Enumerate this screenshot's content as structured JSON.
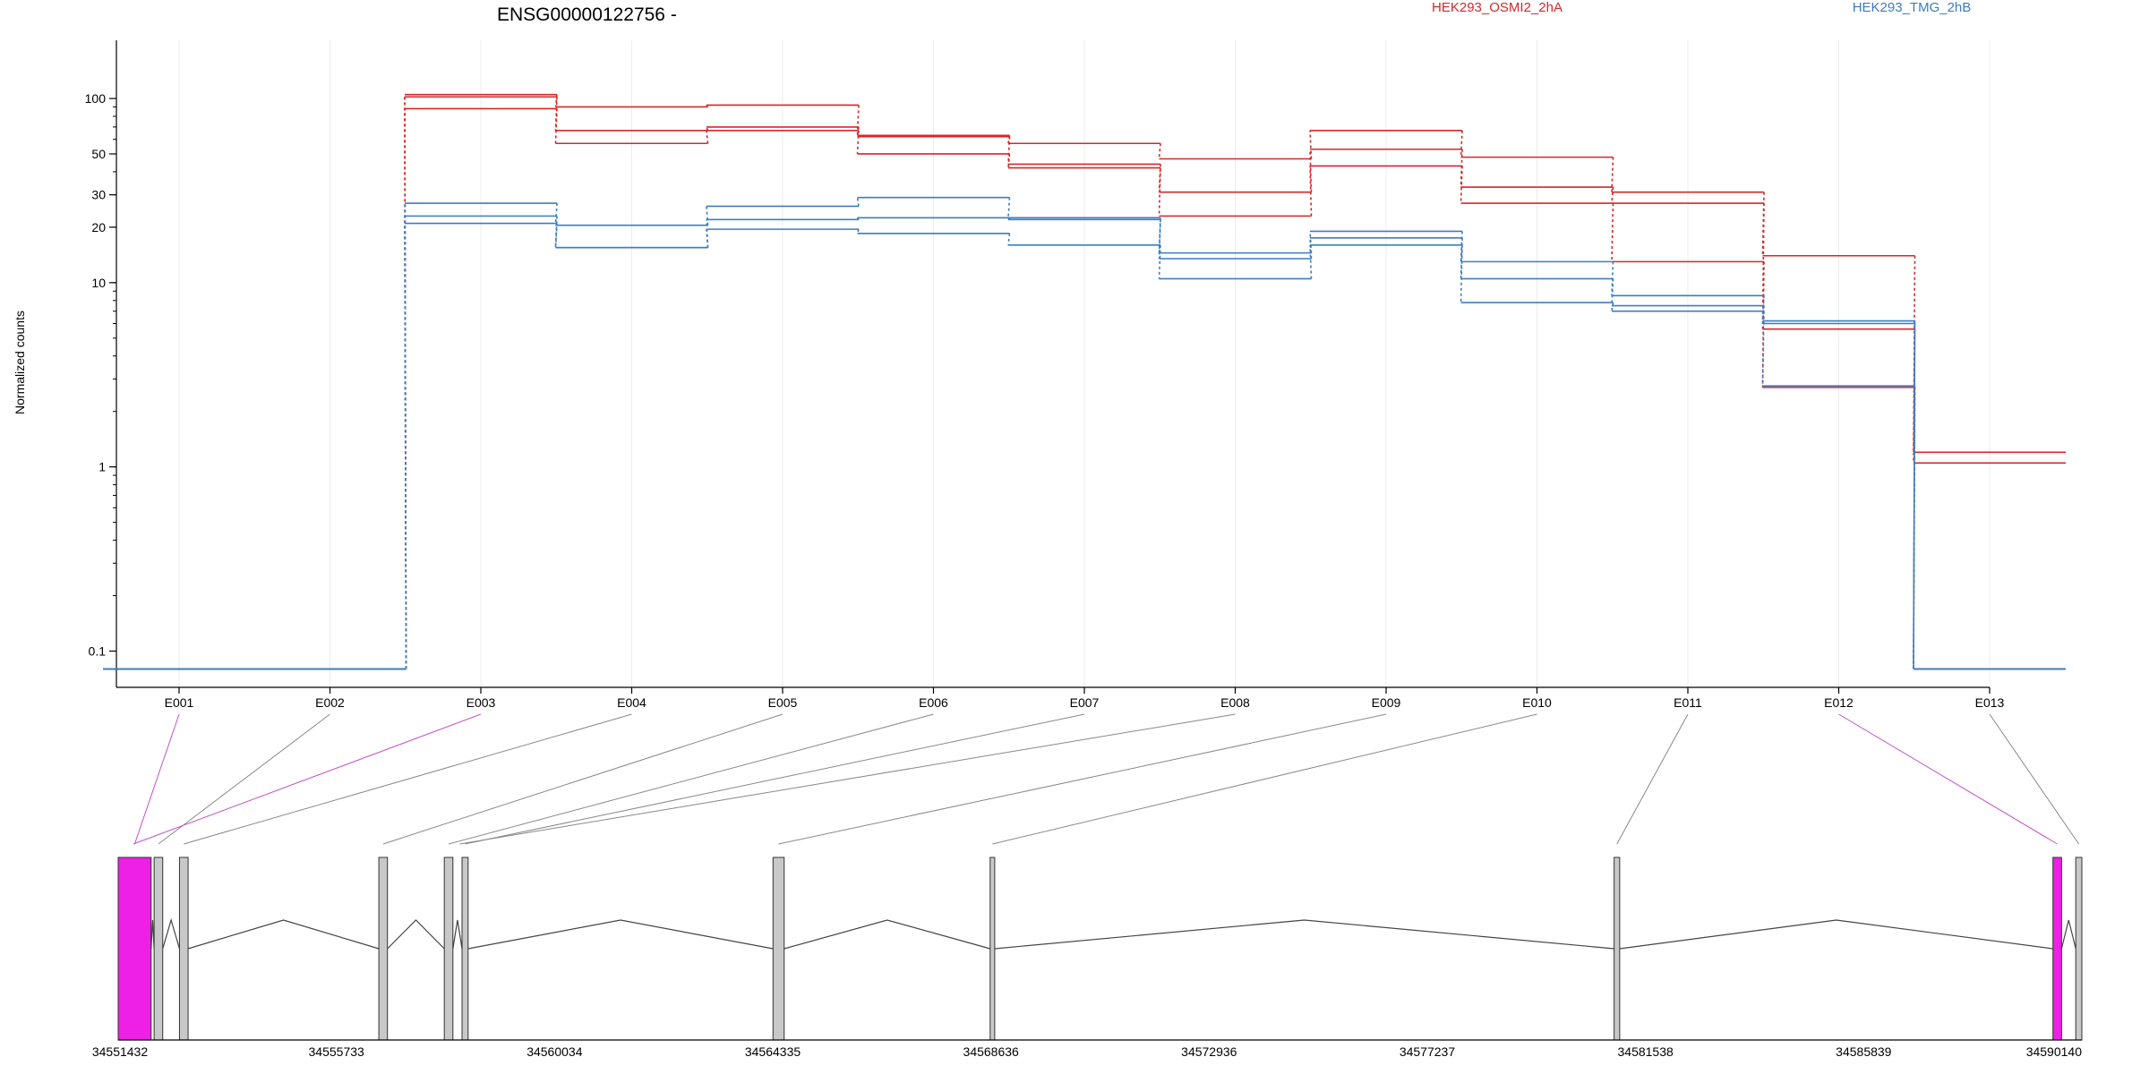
{
  "chart_data": [
    {
      "type": "line",
      "title": "ENSG00000122756 -",
      "ylabel": "Normalized counts",
      "y_scale": "log",
      "y_ticks": [
        0.1,
        1,
        10,
        20,
        30,
        50,
        100
      ],
      "y_tick_labels": [
        "0.1",
        "1",
        "10",
        "20",
        "30",
        "50",
        "100"
      ],
      "ylim": [
        0.085,
        160
      ],
      "categories": [
        "E001",
        "E002",
        "E003",
        "E004",
        "E005",
        "E006",
        "E007",
        "E008",
        "E009",
        "E010",
        "E011",
        "E012",
        "E013"
      ],
      "grid": "vertical",
      "legend_position": "top",
      "series": [
        {
          "name": "HEK293_OSMI2_2hA",
          "color": "#d62728",
          "values": [
            0.08,
            0.08,
            105,
            90,
            92,
            63,
            57,
            47,
            67,
            48,
            31,
            14,
            1.2
          ]
        },
        {
          "name": "HEK293_OSMI2_2hA",
          "color": "#d62728",
          "values": [
            0.08,
            0.08,
            102,
            67,
            70,
            62,
            44,
            31,
            53,
            33,
            27,
            5.6,
            1.05
          ]
        },
        {
          "name": "HEK293_OSMI2_2hA",
          "color": "#d62728",
          "values": [
            0.08,
            0.08,
            88,
            57,
            67,
            50,
            42,
            23,
            43,
            27,
            13,
            2.7,
            0.08
          ]
        },
        {
          "name": "HEK293_TMG_2hB",
          "color": "#3b7dc0",
          "values": [
            0.08,
            0.08,
            27,
            20.5,
            26,
            29,
            22.5,
            14.5,
            19,
            13,
            8.5,
            6.2,
            0.08
          ]
        },
        {
          "name": "HEK293_TMG_2hB",
          "color": "#3b7dc0",
          "values": [
            0.08,
            0.08,
            23,
            15.5,
            22,
            22.5,
            22,
            13.5,
            17.5,
            10.5,
            7.5,
            6.0,
            0.08
          ]
        },
        {
          "name": "HEK293_TMG_2hB",
          "color": "#3b7dc0",
          "values": [
            0.08,
            0.08,
            21,
            15.5,
            19.5,
            18.5,
            16,
            10.5,
            16,
            7.8,
            7.0,
            2.75,
            0.08
          ]
        }
      ],
      "legend": [
        {
          "label": "HEK293_OSMI2_2hA",
          "color": "#d62728"
        },
        {
          "label": "HEK293_TMG_2hB",
          "color": "#3b7dc0"
        }
      ]
    },
    {
      "type": "gene_model",
      "x_ticks": [
        34551432,
        34555733,
        34560034,
        34564335,
        34568636,
        34572936,
        34577237,
        34581538,
        34585839,
        34590140
      ],
      "x_tick_labels": [
        "34551432",
        "34555733",
        "34560034",
        "34564335",
        "34568636",
        "34572936",
        "34577237",
        "34581538",
        "34585839",
        "34590140"
      ],
      "xlim": [
        34551432,
        34590140
      ],
      "exons": [
        {
          "start": 34551432,
          "end": 34552081,
          "highlight": true,
          "connector_from": "E001"
        },
        {
          "start": 34552140,
          "end": 34552310,
          "highlight": false,
          "connector_from": "E002"
        },
        {
          "start": 34552640,
          "end": 34552810,
          "highlight": false,
          "connector_from": "E004"
        },
        {
          "start": 34556570,
          "end": 34556740,
          "highlight": false,
          "connector_from": "E005"
        },
        {
          "start": 34557860,
          "end": 34558030,
          "highlight": false,
          "connector_from": "E006"
        },
        {
          "start": 34558210,
          "end": 34558330,
          "highlight": false,
          "connector_from": "E007"
        },
        {
          "start": 34564340,
          "end": 34564560,
          "highlight": false,
          "connector_from": "E009"
        },
        {
          "start": 34568620,
          "end": 34568710,
          "highlight": false,
          "connector_from": "E010"
        },
        {
          "start": 34580920,
          "end": 34581030,
          "highlight": false,
          "connector_from": "E011"
        },
        {
          "start": 34589570,
          "end": 34589740,
          "highlight": true,
          "connector_from": "E012"
        },
        {
          "start": 34590020,
          "end": 34590140,
          "highlight": false,
          "connector_from": "E013"
        }
      ],
      "extra_connectors": [
        {
          "from": "E003",
          "to_position": 34551732,
          "highlight": true
        },
        {
          "from": "E008",
          "to_position": 34558165,
          "highlight": false
        }
      ],
      "highlight_color": "#ee1fe6",
      "exon_color": "#c8c8c8"
    }
  ]
}
